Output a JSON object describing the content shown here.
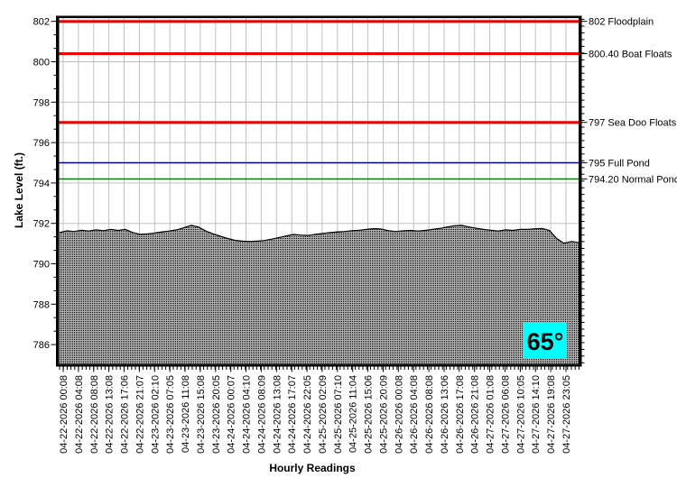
{
  "chart_data": {
    "type": "area",
    "title": "",
    "xlabel": "Hourly Readings",
    "ylabel": "Lake Level (ft.)",
    "ylim": [
      785,
      802.4
    ],
    "grid": true,
    "grid_color": "#C0C0C0",
    "y_ticks": [
      786,
      788,
      790,
      792,
      794,
      796,
      798,
      800,
      802
    ],
    "x_tick_labels": [
      "04-22-2026 00:08",
      "04-22-2026 04:08",
      "04-22-2026 08:08",
      "04-22-2026 13:08",
      "04-22-2026 17:06",
      "04-22-2026 21:07",
      "04-23-2026 02:10",
      "04-23-2026 07:05",
      "04-23-2026 11:08",
      "04-23-2026 15:08",
      "04-23-2026 20:05",
      "04-24-2026 00:07",
      "04-24-2026 04:10",
      "04-24-2026 08:09",
      "04-24-2026 13:08",
      "04-24-2026 17:07",
      "04-24-2026 22:05",
      "04-25-2026 02:09",
      "04-25-2026 07:10",
      "04-25-2026 11:04",
      "04-25-2026 15:06",
      "04-25-2026 20:09",
      "04-26-2026 00:08",
      "04-26-2026 04:08",
      "04-26-2026 08:08",
      "04-26-2026 13:06",
      "04-26-2026 17:08",
      "04-26-2026 21:08",
      "04-27-2026 01:08",
      "04-27-2026 06:08",
      "04-27-2026 10:05",
      "04-27-2026 14:10",
      "04-27-2026 19:08",
      "04-27-2026 23:05"
    ],
    "series": [
      {
        "name": "Lake Level",
        "fill_color": "#00FFFF",
        "pattern": "black-dot-stipple",
        "edge_color": "#000000",
        "values": [
          791.55,
          791.63,
          791.6,
          791.66,
          791.62,
          791.68,
          791.64,
          791.7,
          791.65,
          791.7,
          791.55,
          791.46,
          791.48,
          791.52,
          791.58,
          791.62,
          791.68,
          791.78,
          791.9,
          791.82,
          791.62,
          791.48,
          791.36,
          791.25,
          791.16,
          791.12,
          791.1,
          791.12,
          791.15,
          791.22,
          791.3,
          791.38,
          791.45,
          791.42,
          791.4,
          791.46,
          791.5,
          791.54,
          791.58,
          791.6,
          791.64,
          791.66,
          791.7,
          791.74,
          791.72,
          791.64,
          791.6,
          791.63,
          791.65,
          791.62,
          791.65,
          791.7,
          791.75,
          791.82,
          791.88,
          791.9,
          791.82,
          791.76,
          791.7,
          791.66,
          791.62,
          791.68,
          791.65,
          791.7,
          791.7,
          791.73,
          791.75,
          791.65,
          791.25,
          791.02,
          791.1,
          791.06
        ]
      }
    ],
    "reference_lines": [
      {
        "value": 802,
        "label": "802 Floodplain",
        "color": "#EE0000",
        "width": 3
      },
      {
        "value": 800.4,
        "label": "800.40 Boat Floats",
        "color": "#EE0000",
        "width": 3
      },
      {
        "value": 797,
        "label": "797 Sea Doo Floats",
        "color": "#EE0000",
        "width": 3
      },
      {
        "value": 795,
        "label": "795 Full Pond",
        "color": "#000080",
        "width": 1.4
      },
      {
        "value": 794.2,
        "label": "794.20 Normal Pond",
        "color": "#007700",
        "width": 1.4
      }
    ]
  },
  "temperature": {
    "value": "65°",
    "color": "#00008B",
    "background": "#00FFFF"
  }
}
